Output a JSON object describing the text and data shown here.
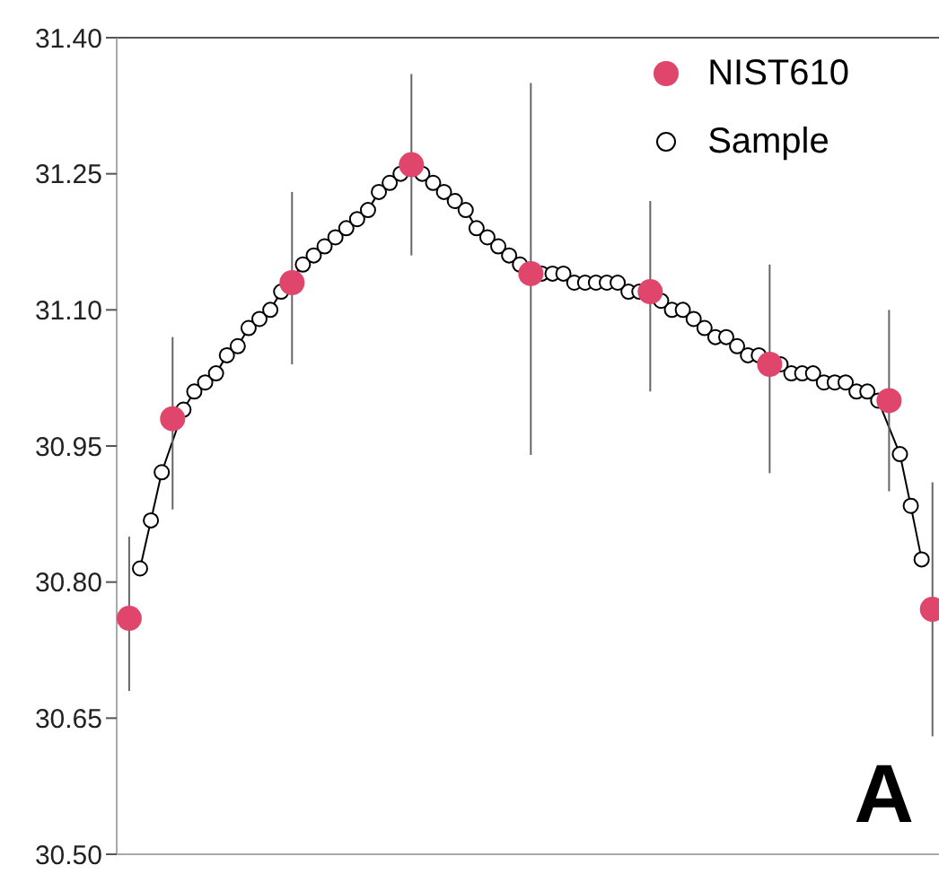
{
  "chart_data": {
    "type": "line",
    "categories": [
      null,
      null,
      null,
      null,
      null,
      null,
      null,
      null,
      null,
      null,
      null,
      null,
      null,
      null,
      null,
      null,
      null,
      null,
      null,
      null,
      null,
      null,
      null,
      null,
      null,
      null,
      null,
      null,
      null,
      null,
      null,
      null,
      null,
      null,
      null,
      null,
      null,
      null,
      null,
      null,
      null,
      null,
      null,
      null,
      null,
      null,
      null,
      null,
      null,
      null,
      null,
      null,
      null,
      null,
      null,
      null,
      null,
      null,
      null,
      null,
      null,
      null,
      null,
      null,
      null,
      null,
      null,
      null,
      null,
      null,
      null,
      null,
      null,
      null,
      null
    ],
    "series": [
      {
        "name": "NIST610",
        "type": "scatter",
        "color": "#e0456b",
        "values": [
          30.76,
          null,
          null,
          null,
          30.98,
          null,
          null,
          null,
          null,
          null,
          null,
          null,
          null,
          null,
          null,
          31.13,
          null,
          null,
          null,
          null,
          null,
          null,
          null,
          null,
          null,
          null,
          31.26,
          null,
          null,
          null,
          null,
          null,
          null,
          null,
          null,
          null,
          null,
          31.14,
          null,
          null,
          null,
          null,
          null,
          null,
          null,
          null,
          null,
          null,
          31.12,
          null,
          null,
          null,
          null,
          null,
          null,
          null,
          null,
          null,
          null,
          31.04,
          null,
          null,
          null,
          null,
          null,
          null,
          null,
          null,
          null,
          null,
          31.0,
          null,
          null,
          null,
          30.77
        ],
        "errors": [
          [
            30.68,
            30.85
          ],
          null,
          null,
          null,
          [
            30.88,
            31.07
          ],
          null,
          null,
          null,
          null,
          null,
          null,
          null,
          null,
          null,
          null,
          [
            31.04,
            31.23
          ],
          null,
          null,
          null,
          null,
          null,
          null,
          null,
          null,
          null,
          null,
          [
            31.16,
            31.36
          ],
          null,
          null,
          null,
          null,
          null,
          null,
          null,
          null,
          null,
          null,
          [
            30.94,
            31.35
          ],
          null,
          null,
          null,
          null,
          null,
          null,
          null,
          null,
          null,
          null,
          [
            31.01,
            31.22
          ],
          null,
          null,
          null,
          null,
          null,
          null,
          null,
          null,
          null,
          null,
          [
            30.92,
            31.15
          ],
          null,
          null,
          null,
          null,
          null,
          null,
          null,
          null,
          null,
          null,
          [
            30.9,
            31.1
          ],
          null,
          null,
          null,
          [
            30.63,
            30.91
          ]
        ]
      },
      {
        "name": "Sample",
        "type": "line",
        "color": "#000000",
        "values": [
          null,
          30.815,
          30.868,
          30.921,
          null,
          30.99,
          31.01,
          31.02,
          31.03,
          31.05,
          31.06,
          31.08,
          31.09,
          31.1,
          31.12,
          null,
          31.15,
          31.16,
          31.17,
          31.18,
          31.19,
          31.2,
          31.21,
          31.23,
          31.24,
          31.25,
          null,
          31.25,
          31.24,
          31.23,
          31.22,
          31.21,
          31.19,
          31.18,
          31.17,
          31.16,
          31.15,
          null,
          31.14,
          31.14,
          31.14,
          31.13,
          31.13,
          31.13,
          31.13,
          31.13,
          31.12,
          31.12,
          null,
          31.11,
          31.1,
          31.1,
          31.09,
          31.08,
          31.07,
          31.07,
          31.06,
          31.05,
          31.05,
          null,
          31.04,
          31.03,
          31.03,
          31.03,
          31.02,
          31.02,
          31.02,
          31.01,
          31.01,
          31.0,
          null,
          30.941,
          30.884,
          30.825,
          null
        ]
      }
    ],
    "ylim": [
      30.5,
      31.4
    ],
    "yticks": [
      {
        "value": 30.5,
        "label": "30.50"
      },
      30.65,
      {
        "value": 30.8,
        "label": "30.80"
      },
      30.95,
      {
        "value": 31.1,
        "label": "31.10"
      },
      31.25,
      {
        "value": 31.4,
        "label": "31.40"
      }
    ],
    "tick_labels": "y",
    "marker": "circle",
    "line_style": "solid",
    "grid": false,
    "legend": "top right",
    "annotations": [
      "A"
    ]
  }
}
